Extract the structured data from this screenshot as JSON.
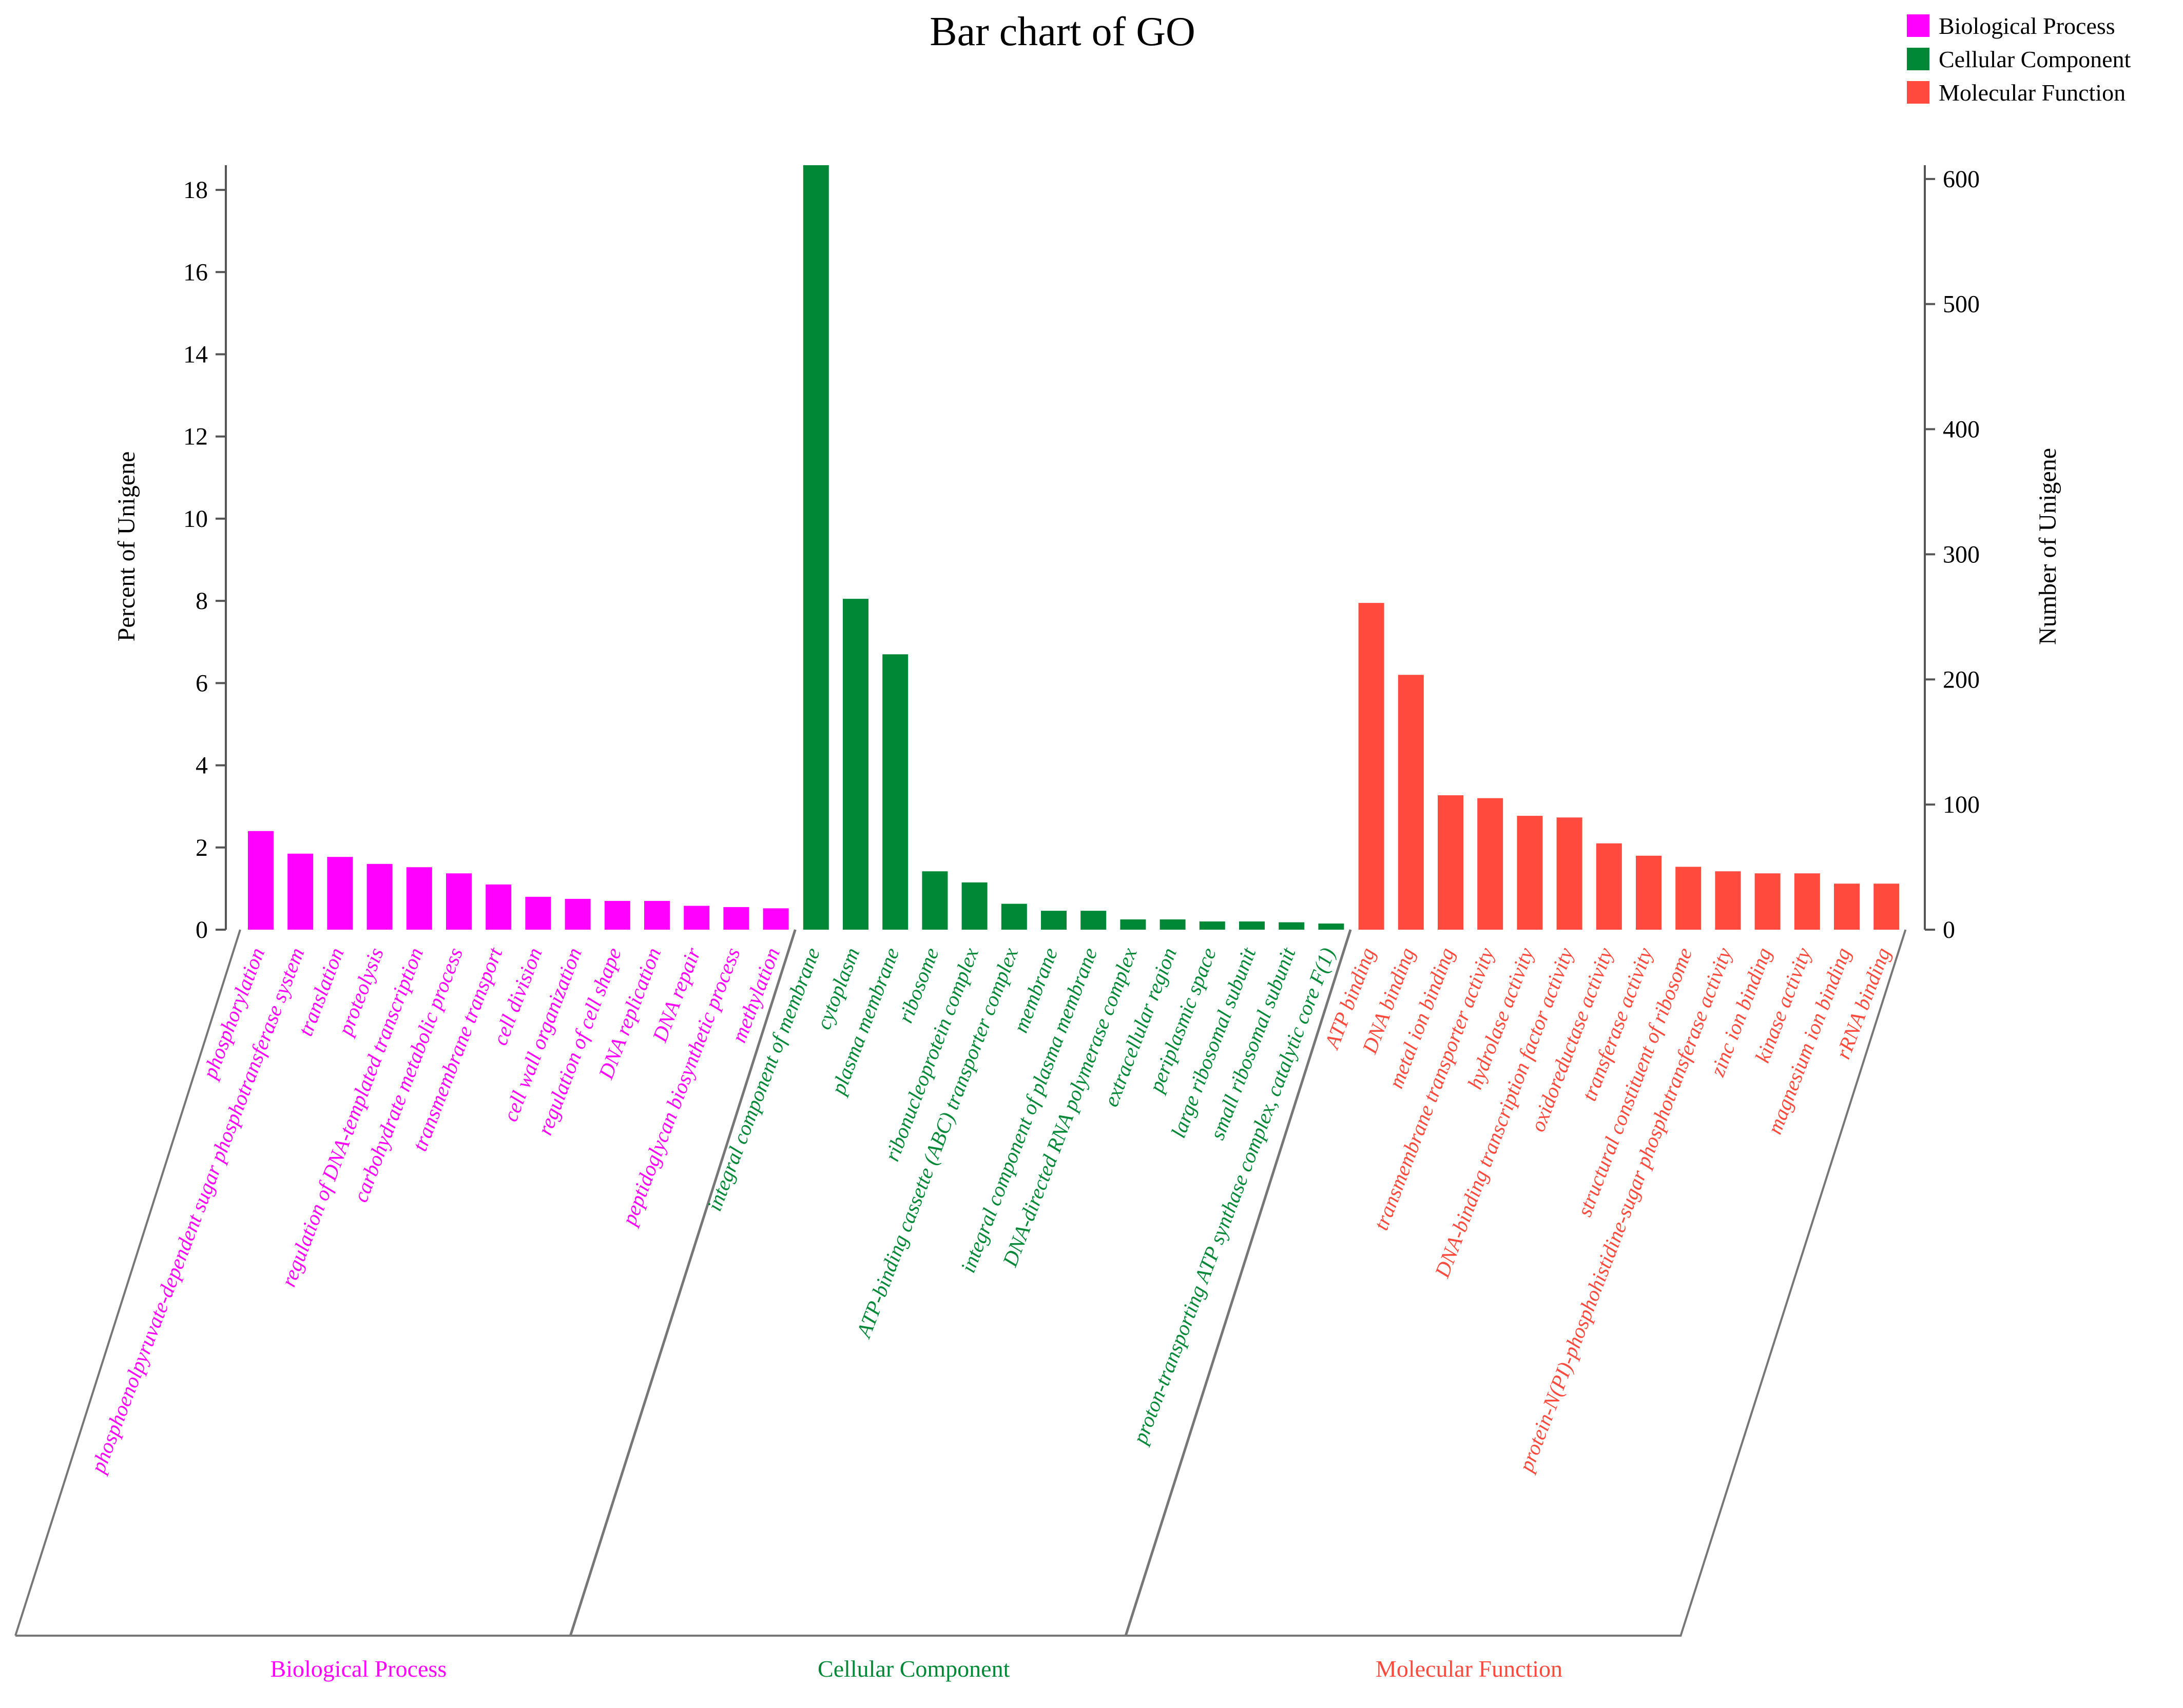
{
  "chart_data": {
    "type": "bar",
    "title": "Bar chart of GO",
    "ylabel_left": "Percent of Unigene",
    "ylabel_right": "Number of Unigene",
    "ylim_left": [
      0,
      18.6
    ],
    "ylim_right": [
      0,
      611
    ],
    "yticks_left": [
      0,
      2,
      4,
      6,
      8,
      10,
      12,
      14,
      16,
      18
    ],
    "yticks_right": [
      0,
      100,
      200,
      300,
      400,
      500,
      600
    ],
    "legend_position": "top-right",
    "series": [
      {
        "name": "Biological Process",
        "color": "#ff00ff",
        "categories": [
          "phosphorylation",
          "phosphoenolpyruvate-dependent sugar phosphotransferase system",
          "translation",
          "proteolysis",
          "regulation of DNA-templated transcription",
          "carbohydrate metabolic process",
          "transmembrane transport",
          "cell division",
          "cell wall organization",
          "regulation of cell shape",
          "DNA replication",
          "DNA repair",
          "peptidoglycan biosynthetic process",
          "methylation"
        ],
        "values": [
          2.4,
          1.85,
          1.77,
          1.6,
          1.52,
          1.37,
          1.1,
          0.8,
          0.75,
          0.7,
          0.7,
          0.58,
          0.55,
          0.52
        ]
      },
      {
        "name": "Cellular Component",
        "color": "#008837",
        "categories": [
          "integral component of membrane",
          "cytoplasm",
          "plasma membrane",
          "ribosome",
          "ribonucleoprotein complex",
          "ATP-binding cassette (ABC) transporter complex",
          "membrane",
          "integral component of plasma membrane",
          "DNA-directed RNA polymerase complex",
          "extracellular region",
          "periplasmic space",
          "large ribosomal subunit",
          "small ribosomal subunit",
          "proton-transporting ATP synthase complex, catalytic core F(1)"
        ],
        "values": [
          18.6,
          8.05,
          6.7,
          1.42,
          1.15,
          0.63,
          0.46,
          0.46,
          0.25,
          0.25,
          0.2,
          0.2,
          0.18,
          0.15
        ]
      },
      {
        "name": "Molecular Function",
        "color": "#ff4a3d",
        "categories": [
          "ATP binding",
          "DNA binding",
          "metal ion binding",
          "transmembrane transporter activity",
          "hydrolase activity",
          "DNA-binding transcription factor activity",
          "oxidoreductase activity",
          "transferase activity",
          "structural constituent of ribosome",
          "protein-N(PI)-phosphohistidine-sugar phosphotransferase activity",
          "zinc ion binding",
          "kinase activity",
          "magnesium ion binding",
          "rRNA binding"
        ],
        "values": [
          7.95,
          6.2,
          3.27,
          3.2,
          2.77,
          2.73,
          2.1,
          1.8,
          1.53,
          1.42,
          1.37,
          1.37,
          1.12,
          1.12
        ]
      }
    ]
  }
}
